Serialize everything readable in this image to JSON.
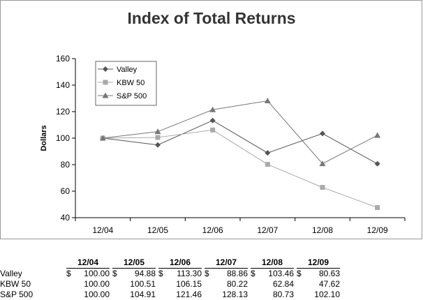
{
  "chart_data": {
    "type": "line",
    "title": "Index of Total Returns",
    "xlabel": "",
    "ylabel": "Dollars",
    "categories": [
      "12/04",
      "12/05",
      "12/06",
      "12/07",
      "12/08",
      "12/09"
    ],
    "ylim": [
      40,
      160
    ],
    "yticks": [
      40,
      60,
      80,
      100,
      120,
      140,
      160
    ],
    "grid": false,
    "legend_position": "top-left",
    "series": [
      {
        "name": "Valley",
        "marker": "diamond",
        "color": "#555555",
        "values": [
          100.0,
          94.88,
          113.3,
          88.86,
          103.46,
          80.63
        ]
      },
      {
        "name": "KBW 50",
        "marker": "square",
        "color": "#aaaaaa",
        "values": [
          100.0,
          100.51,
          106.15,
          80.22,
          62.84,
          47.62
        ]
      },
      {
        "name": "S&P 500",
        "marker": "triangle",
        "color": "#777777",
        "values": [
          100.0,
          104.91,
          121.46,
          128.13,
          80.73,
          102.1
        ]
      }
    ]
  },
  "table": {
    "headers": [
      "12/04",
      "12/05",
      "12/06",
      "12/07",
      "12/08",
      "12/09"
    ],
    "currency_symbol": "$",
    "rows": [
      {
        "label": "Valley",
        "values": [
          "100.00",
          "94.88",
          "113.30",
          "88.86",
          "103.46",
          "80.63"
        ]
      },
      {
        "label": "KBW 50",
        "values": [
          "100.00",
          "100.51",
          "106.15",
          "80.22",
          "62.84",
          "47.62"
        ]
      },
      {
        "label": "S&P 500",
        "values": [
          "100.00",
          "104.91",
          "121.46",
          "128.13",
          "80.73",
          "102.10"
        ]
      }
    ]
  }
}
